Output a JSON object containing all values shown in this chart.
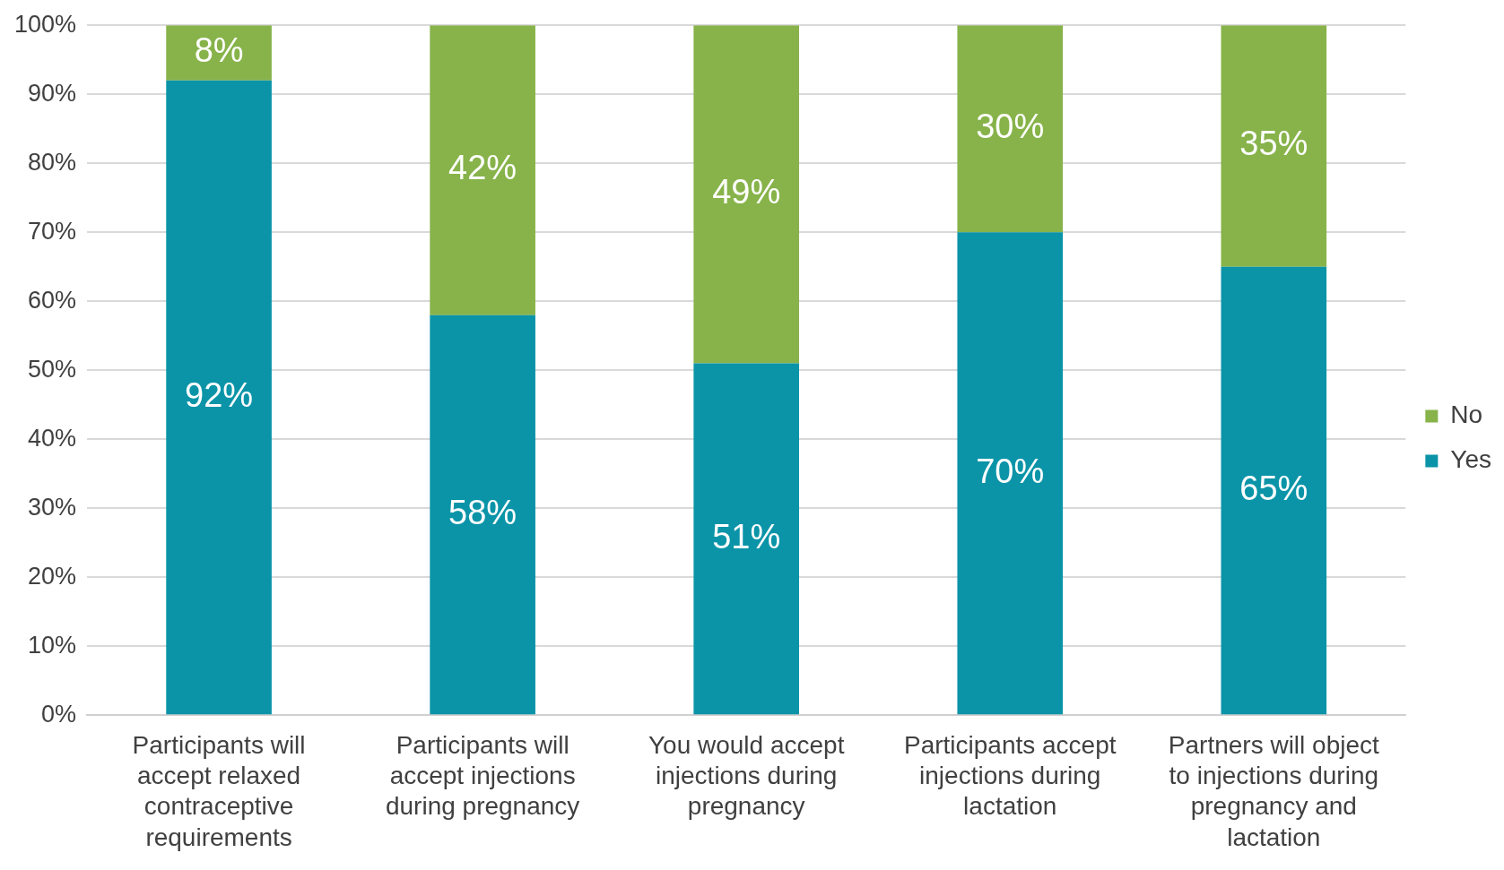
{
  "chart_data": {
    "type": "bar",
    "stacked": true,
    "categories": [
      "Participants will accept relaxed contraceptive requirements",
      "Participants will accept injections during pregnancy",
      "You would accept injections during pregnancy",
      "Participants accept injections during lactation",
      "Partners will object to injections during pregnancy and lactation"
    ],
    "series": [
      {
        "name": "Yes",
        "color": "#0b94a8",
        "values": [
          92,
          58,
          51,
          70,
          65
        ],
        "value_labels": [
          "92%",
          "58%",
          "51%",
          "70%",
          "65%"
        ]
      },
      {
        "name": "No",
        "color": "#87b34a",
        "values": [
          8,
          42,
          49,
          30,
          35
        ],
        "value_labels": [
          "8%",
          "42%",
          "49%",
          "30%",
          "35%"
        ]
      }
    ],
    "ylim": [
      0,
      100
    ],
    "yticks": [
      {
        "value": 0,
        "label": "0%"
      },
      {
        "value": 10,
        "label": "10%"
      },
      {
        "value": 20,
        "label": "20%"
      },
      {
        "value": 30,
        "label": "30%"
      },
      {
        "value": 40,
        "label": "40%"
      },
      {
        "value": 50,
        "label": "50%"
      },
      {
        "value": 60,
        "label": "60%"
      },
      {
        "value": 70,
        "label": "70%"
      },
      {
        "value": 80,
        "label": "80%"
      },
      {
        "value": 90,
        "label": "90%"
      },
      {
        "value": 100,
        "label": "100%"
      }
    ],
    "grid": "y",
    "legend": "right"
  }
}
